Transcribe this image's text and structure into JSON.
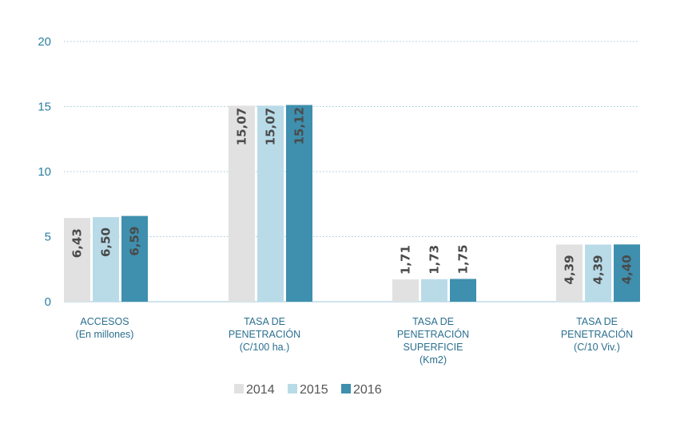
{
  "chart_data": {
    "type": "bar",
    "title": "",
    "xlabel": "",
    "ylabel": "",
    "ylim": [
      0,
      20
    ],
    "yticks": [
      0,
      5,
      10,
      15,
      20
    ],
    "grid": true,
    "legend_position": "bottom",
    "categories": [
      [
        "ACCESOS",
        "(En millones)"
      ],
      [
        "TASA DE",
        "PENETRACIÓN",
        "(C/100 ha.)"
      ],
      [
        "TASA DE",
        "PENETRACIÓN",
        "SUPERFICIE",
        "(Km2)"
      ],
      [
        "TASA DE",
        "PENETRACIÓN",
        "(C/10 Viv.)"
      ]
    ],
    "series": [
      {
        "name": "2014",
        "color": "#e1e1e1",
        "values": [
          6.43,
          15.07,
          1.71,
          4.39
        ],
        "labels": [
          "6,43",
          "15,07",
          "1,71",
          "4,39"
        ]
      },
      {
        "name": "2015",
        "color": "#b9dbe8",
        "values": [
          6.5,
          15.07,
          1.73,
          4.39
        ],
        "labels": [
          "6,50",
          "15,07",
          "1,73",
          "4,39"
        ]
      },
      {
        "name": "2016",
        "color": "#3f8fae",
        "values": [
          6.59,
          15.12,
          1.75,
          4.4
        ],
        "labels": [
          "6,59",
          "15,12",
          "1,75",
          "4,40"
        ]
      }
    ]
  }
}
